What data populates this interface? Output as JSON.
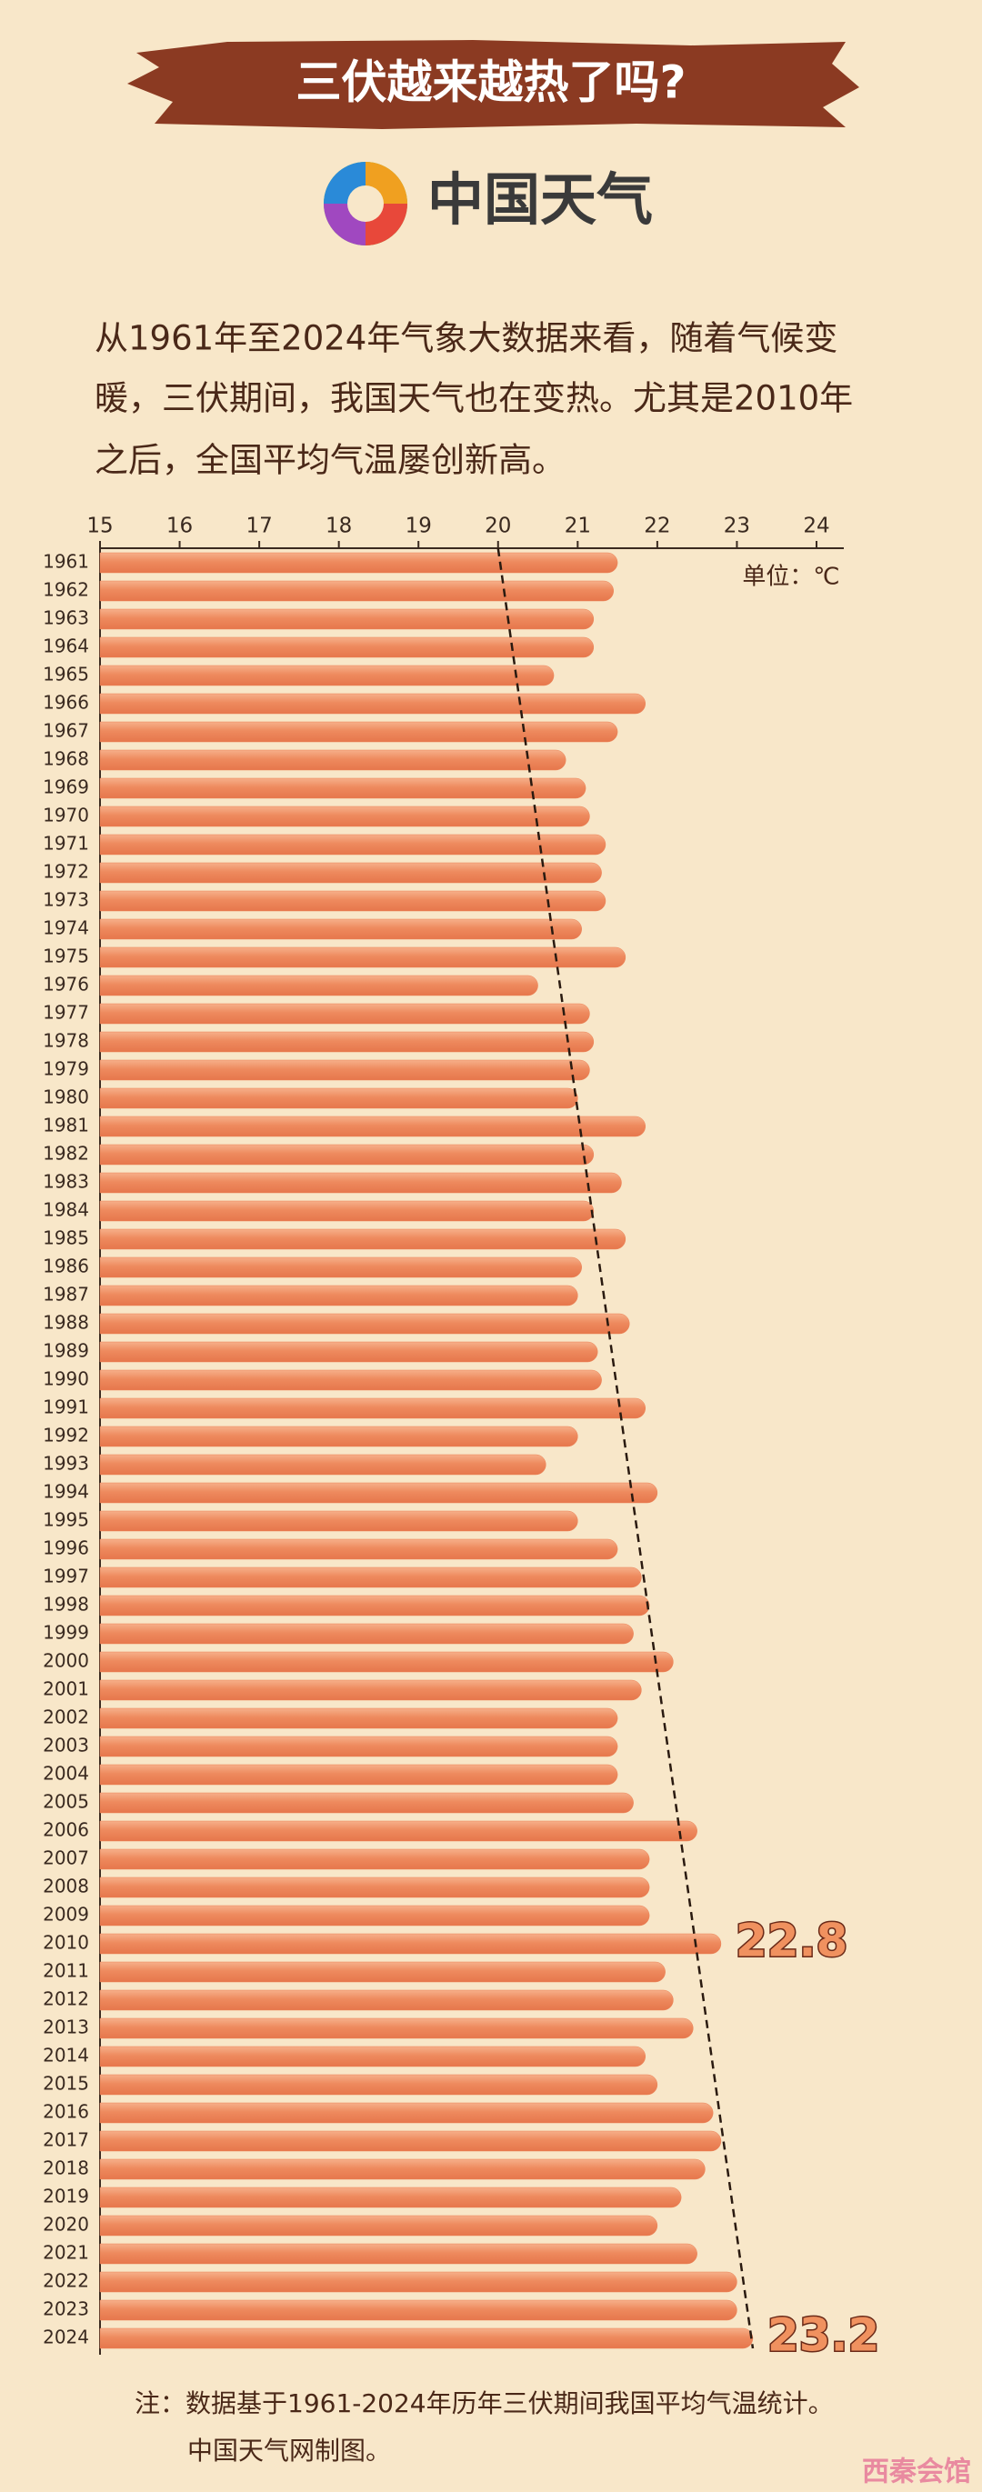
{
  "title": "三伏越来越热了吗?",
  "logo": "中国天气",
  "intro": [
    "从1961年至2024年气象大数据来看，随着气候变",
    "暖，三伏期间，我国天气也在变热。尤其是2010年",
    "之后，全国平均气温屡创新高。"
  ],
  "chart_data": {
    "type": "hbar",
    "unit": "单位：℃",
    "categories": [
      "1961",
      "1962",
      "1963",
      "1964",
      "1965",
      "1966",
      "1967",
      "1968",
      "1969",
      "1970",
      "1971",
      "1972",
      "1973",
      "1974",
      "1975",
      "1976",
      "1977",
      "1978",
      "1979",
      "1980",
      "1981",
      "1982",
      "1983",
      "1984",
      "1985",
      "1986",
      "1987",
      "1988",
      "1989",
      "1990",
      "1991",
      "1992",
      "1993",
      "1994",
      "1995",
      "1996",
      "1997",
      "1998",
      "1999",
      "2000",
      "2001",
      "2002",
      "2003",
      "2004",
      "2005",
      "2006",
      "2007",
      "2008",
      "2009",
      "2010",
      "2011",
      "2012",
      "2013",
      "2014",
      "2015",
      "2016",
      "2017",
      "2018",
      "2019",
      "2020",
      "2021",
      "2022",
      "2023",
      "2024"
    ],
    "values": [
      21.5,
      21.45,
      21.2,
      21.2,
      20.7,
      21.85,
      21.5,
      20.85,
      21.1,
      21.15,
      21.35,
      21.3,
      21.35,
      21.05,
      21.6,
      20.5,
      21.15,
      21.2,
      21.15,
      21.0,
      21.85,
      21.2,
      21.55,
      21.2,
      21.6,
      21.05,
      21.0,
      21.65,
      21.25,
      21.3,
      21.85,
      21.0,
      20.6,
      22.0,
      21.0,
      21.5,
      21.8,
      21.9,
      21.7,
      22.2,
      21.8,
      21.5,
      21.5,
      21.5,
      21.7,
      22.5,
      21.9,
      21.9,
      21.9,
      22.8,
      22.1,
      22.2,
      22.45,
      21.85,
      22.0,
      22.7,
      22.8,
      22.6,
      22.3,
      22.0,
      22.5,
      23.0,
      23.0,
      23.2
    ],
    "value_labels": [
      null,
      null,
      null,
      null,
      null,
      null,
      null,
      null,
      null,
      null,
      null,
      null,
      null,
      null,
      null,
      null,
      null,
      null,
      null,
      null,
      null,
      null,
      null,
      null,
      null,
      null,
      null,
      null,
      null,
      null,
      null,
      null,
      null,
      null,
      null,
      null,
      null,
      null,
      null,
      null,
      null,
      null,
      null,
      null,
      null,
      null,
      null,
      null,
      null,
      "22.8",
      null,
      null,
      null,
      null,
      null,
      null,
      null,
      null,
      null,
      null,
      null,
      null,
      null,
      "23.2"
    ],
    "color": "#ec8256",
    "trend": [
      20,
      23.2
    ],
    "xlim": [
      15,
      24
    ],
    "xticks": [
      15,
      16,
      17,
      18,
      19,
      20,
      21,
      22,
      23,
      24
    ]
  },
  "notes": [
    "注：数据基于1961-2024年历年三伏期间我国平均气温统计。",
    "中国天气网制图。"
  ],
  "watermark": "西秦会馆"
}
